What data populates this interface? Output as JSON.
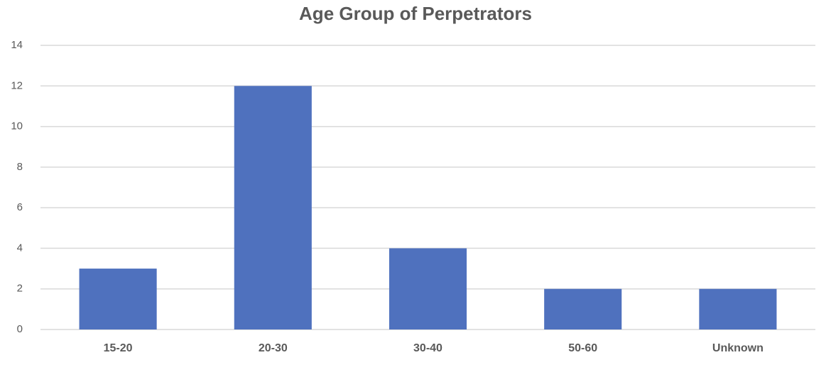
{
  "chart_data": {
    "type": "bar",
    "title": "Age Group of Perpetrators",
    "categories": [
      "15-20",
      "20-30",
      "30-40",
      "50-60",
      "Unknown"
    ],
    "values": [
      3,
      12,
      4,
      2,
      2
    ],
    "color": "#4f71be",
    "ylim": [
      0,
      14
    ],
    "yticks": [
      0,
      2,
      4,
      6,
      8,
      10,
      12,
      14
    ],
    "grid": true
  }
}
